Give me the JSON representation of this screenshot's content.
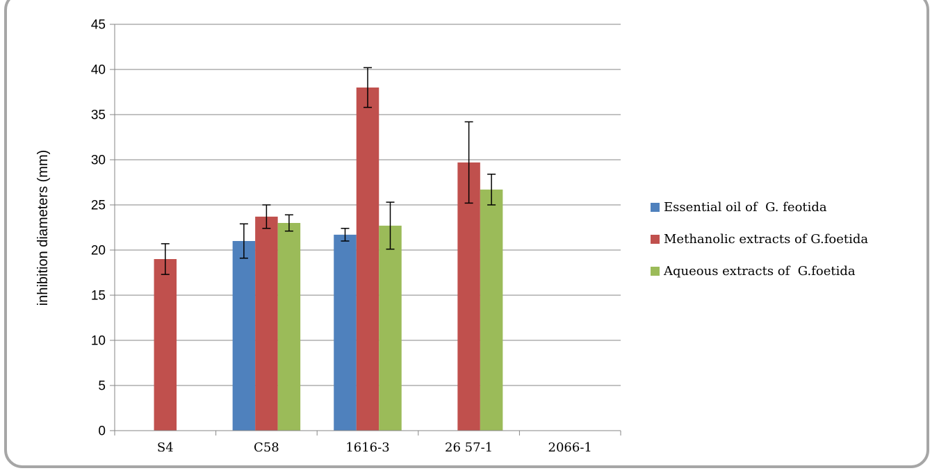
{
  "chart_data": {
    "type": "bar",
    "title": "",
    "xlabel": "",
    "ylabel": "inhibition diameters (mm)",
    "ylim": [
      0,
      45
    ],
    "yticks": [
      0,
      5,
      10,
      15,
      20,
      25,
      30,
      35,
      40,
      45
    ],
    "grid": true,
    "legend_position": "right",
    "categories": [
      "S4",
      "C58",
      "1616-3",
      "26 57-1",
      "2066-1"
    ],
    "series": [
      {
        "name": "Essential oil of  G. feotida",
        "color": "#4f81bd",
        "values": [
          0,
          21,
          21.7,
          0,
          0
        ],
        "errors": [
          null,
          1.9,
          0.7,
          null,
          null
        ]
      },
      {
        "name": "Methanolic extracts of G.foetida",
        "color": "#c0504d",
        "values": [
          19,
          23.7,
          38,
          29.7,
          0
        ],
        "errors": [
          1.7,
          1.3,
          2.2,
          4.5,
          null
        ]
      },
      {
        "name": "Aqueous extracts of  G.foetida",
        "color": "#9bbb59",
        "values": [
          0,
          23,
          22.7,
          26.7,
          0
        ],
        "errors": [
          null,
          0.9,
          2.6,
          1.7,
          null
        ]
      }
    ]
  }
}
